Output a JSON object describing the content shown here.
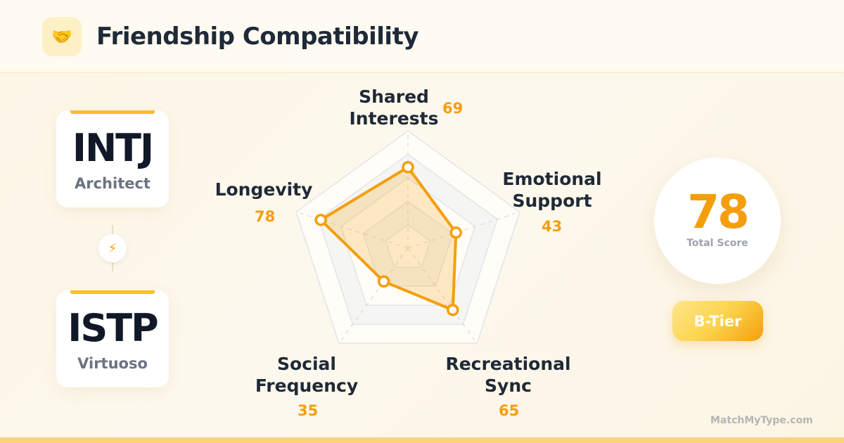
{
  "header": {
    "icon": "handshake-icon",
    "icon_glyph": "🤝",
    "title": "Friendship Compatibility"
  },
  "person_a": {
    "type": "INTJ",
    "name": "Architect"
  },
  "person_b": {
    "type": "ISTP",
    "name": "Virtuoso"
  },
  "connector": {
    "icon": "lightning-icon",
    "glyph": "⚡"
  },
  "chart_data": {
    "type": "radar",
    "range": [
      0,
      100
    ],
    "axes": [
      {
        "label_lines": [
          "Shared",
          "Interests"
        ],
        "value": 69
      },
      {
        "label_lines": [
          "Emotional",
          "Support"
        ],
        "value": 43
      },
      {
        "label_lines": [
          "Recreational",
          "Sync"
        ],
        "value": 65
      },
      {
        "label_lines": [
          "Social",
          "Frequency"
        ],
        "value": 35
      },
      {
        "label_lines": [
          "Longevity"
        ],
        "value": 78
      }
    ],
    "value_labels": [
      "69",
      "43",
      "65",
      "35",
      "78"
    ],
    "color": "#f59e0b"
  },
  "score": {
    "value": "78",
    "caption": "Total Score"
  },
  "tier": "B-Tier",
  "brand": "MatchMyType.com"
}
